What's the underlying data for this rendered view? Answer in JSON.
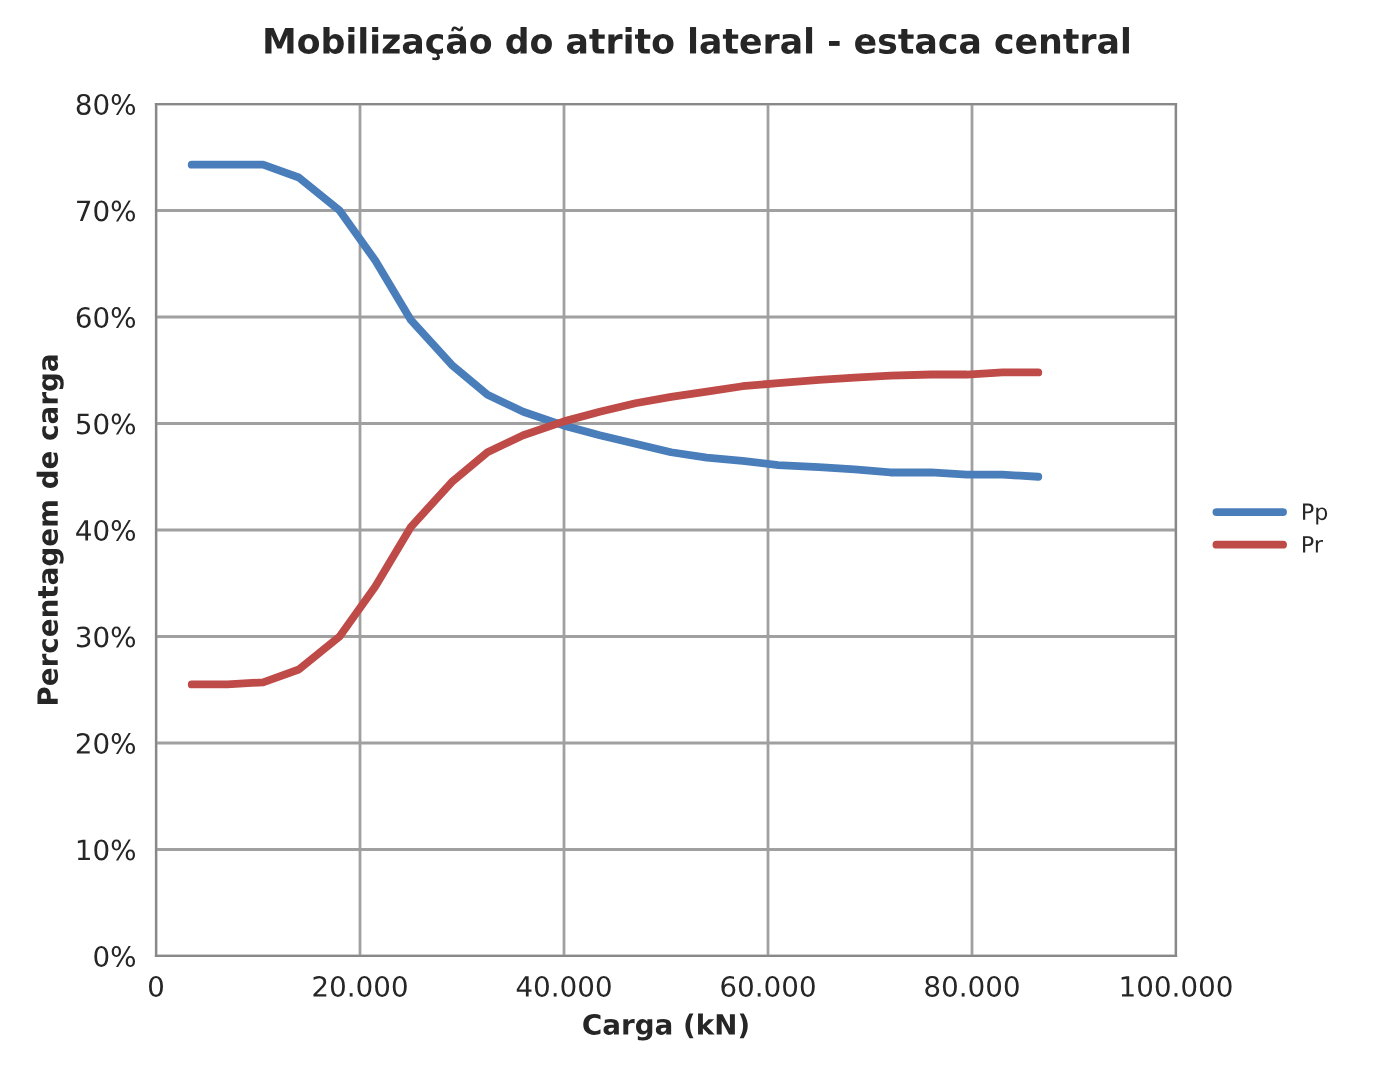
{
  "chart_data": {
    "type": "line",
    "title": "Mobilização do atrito lateral - estaca central",
    "xlabel": "Carga (kN)",
    "ylabel": "Percentagem de carga",
    "x": [
      3500,
      7000,
      10500,
      14000,
      18000,
      21500,
      25000,
      29000,
      32500,
      36000,
      40000,
      43500,
      47000,
      50500,
      54000,
      57500,
      61000,
      65000,
      68500,
      72000,
      76000,
      79500,
      83000,
      86500
    ],
    "series": [
      {
        "name": "Pp",
        "color": "#4a7ebb",
        "values": [
          74.3,
          74.3,
          74.3,
          73.1,
          70,
          65.3,
          59.7,
          55.5,
          52.7,
          51.1,
          49.8,
          48.9,
          48.1,
          47.3,
          46.8,
          46.5,
          46.1,
          45.9,
          45.7,
          45.4,
          45.4,
          45.2,
          45.2,
          45.0
        ]
      },
      {
        "name": "Pr",
        "color": "#be4b48",
        "values": [
          25.5,
          25.5,
          25.7,
          26.9,
          30,
          34.7,
          40.3,
          44.5,
          47.3,
          48.9,
          50.2,
          51.1,
          51.9,
          52.5,
          53.0,
          53.5,
          53.8,
          54.1,
          54.3,
          54.5,
          54.6,
          54.6,
          54.8,
          54.8
        ]
      }
    ],
    "xlim": [
      0,
      100000
    ],
    "xticks": [
      {
        "value": 0,
        "label": "0"
      },
      {
        "value": 20000,
        "label": "20.000"
      },
      {
        "value": 40000,
        "label": "40.000"
      },
      {
        "value": 60000,
        "label": "60.000"
      },
      {
        "value": 80000,
        "label": "80.000"
      },
      {
        "value": 100000,
        "label": "100.000"
      }
    ],
    "ylim": [
      0,
      80
    ],
    "yticks": [
      {
        "value": 0,
        "label": "0%"
      },
      {
        "value": 10,
        "label": "10%"
      },
      {
        "value": 20,
        "label": "20%"
      },
      {
        "value": 30,
        "label": "30%"
      },
      {
        "value": 40,
        "label": "40%"
      },
      {
        "value": 50,
        "label": "50%"
      },
      {
        "value": 60,
        "label": "60%"
      },
      {
        "value": 70,
        "label": "70%"
      },
      {
        "value": 80,
        "label": "80%"
      }
    ],
    "grid": true,
    "legend": "right",
    "marker": "none",
    "line_style": "solid"
  }
}
